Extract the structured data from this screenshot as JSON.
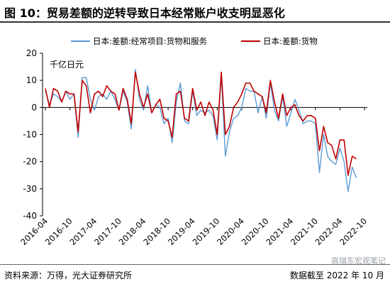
{
  "header": {
    "title": "图 10：贸易差额的逆转导致日本经常账户收支明显恶化"
  },
  "footer": {
    "source": "资料来源：万得，光大证券研究所",
    "date": "数据截至 2022 年 10 月",
    "watermark": "高瑞东宏观笔记"
  },
  "chart_data": {
    "type": "line",
    "unit_label": "千亿日元",
    "ylim": [
      -40,
      20
    ],
    "yticks": [
      20,
      10,
      0,
      -10,
      -20,
      -30,
      -40
    ],
    "x_tick_labels": [
      "2016-04",
      "2016-10",
      "2017-04",
      "2017-10",
      "2018-04",
      "2018-10",
      "2019-04",
      "2019-10",
      "2020-04",
      "2020-10",
      "2021-04",
      "2021-10",
      "2022-04",
      "2022-10"
    ],
    "x_start": "2016-04",
    "x_end": "2022-10",
    "legend_position": "top",
    "grid": false,
    "series": [
      {
        "name": "日本:差额:经常项目:货物和服务",
        "color": "#5b9bd5",
        "values": [
          6,
          1,
          5,
          4,
          2,
          6,
          3,
          5,
          -11,
          11,
          11,
          3,
          -1,
          4,
          5,
          3,
          6,
          3,
          -1,
          6,
          2,
          -8,
          14,
          3,
          -1,
          8,
          -2,
          1,
          0,
          -6,
          -4,
          -13,
          2,
          9,
          -5,
          -6,
          6,
          -3,
          -1,
          -2,
          -1,
          -3,
          -12,
          12,
          -18,
          -9,
          -4,
          -3,
          0,
          7,
          6,
          6,
          -2,
          4,
          -4,
          9,
          -1,
          -5,
          4,
          -7,
          -2,
          3,
          -1,
          -6,
          -5,
          -5,
          -6,
          -24,
          -10,
          -18,
          -20,
          -21,
          -15,
          -20,
          -31,
          -22,
          -26
        ]
      },
      {
        "name": "日本:差额:货物",
        "color": "#c00000",
        "values": [
          7,
          0,
          7,
          6,
          2,
          6,
          5,
          5,
          -9,
          10,
          8,
          -2,
          5,
          6,
          4,
          8,
          6,
          5,
          -1,
          7,
          3,
          -6,
          13,
          5,
          0,
          5,
          -2,
          1,
          3,
          -4,
          -5,
          -11,
          5,
          6,
          -4,
          -5,
          7,
          -1,
          2,
          -3,
          2,
          -1,
          -10,
          13,
          -10,
          -7,
          0,
          2,
          5,
          9,
          9,
          6,
          5,
          4,
          -2,
          10,
          2,
          -4,
          5,
          -3,
          0,
          1,
          -3,
          -5,
          -3,
          -3,
          -4,
          -16,
          -7,
          -13,
          -14,
          -19,
          -12,
          -12,
          -25,
          -18,
          -19
        ]
      }
    ]
  }
}
